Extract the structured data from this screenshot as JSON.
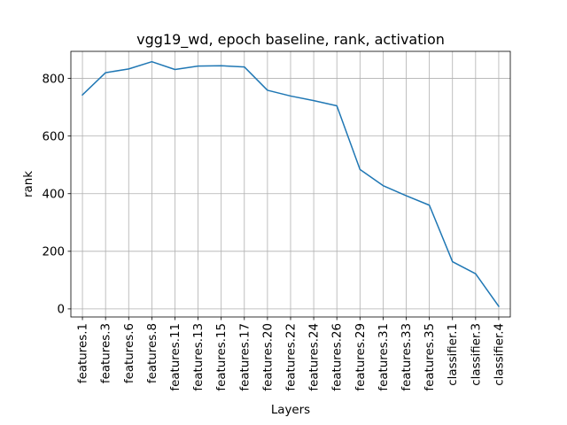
{
  "chart_data": {
    "type": "line",
    "title": "vgg19_wd, epoch baseline, rank, activation",
    "xlabel": "Layers",
    "ylabel": "rank",
    "categories": [
      "features.1",
      "features.3",
      "features.6",
      "features.8",
      "features.11",
      "features.13",
      "features.15",
      "features.17",
      "features.20",
      "features.22",
      "features.24",
      "features.26",
      "features.29",
      "features.31",
      "features.33",
      "features.35",
      "classifier.1",
      "classifier.3",
      "classifier.4"
    ],
    "series": [
      {
        "values": [
          743,
          820,
          833,
          858,
          831,
          843,
          844,
          840,
          759,
          739,
          723,
          705,
          484,
          428,
          393,
          360,
          164,
          122,
          9
        ],
        "color": "#1f77b4"
      }
    ],
    "ylim": [
      -28,
      894
    ],
    "yticks": [
      0,
      200,
      400,
      600,
      800
    ],
    "grid": true
  }
}
